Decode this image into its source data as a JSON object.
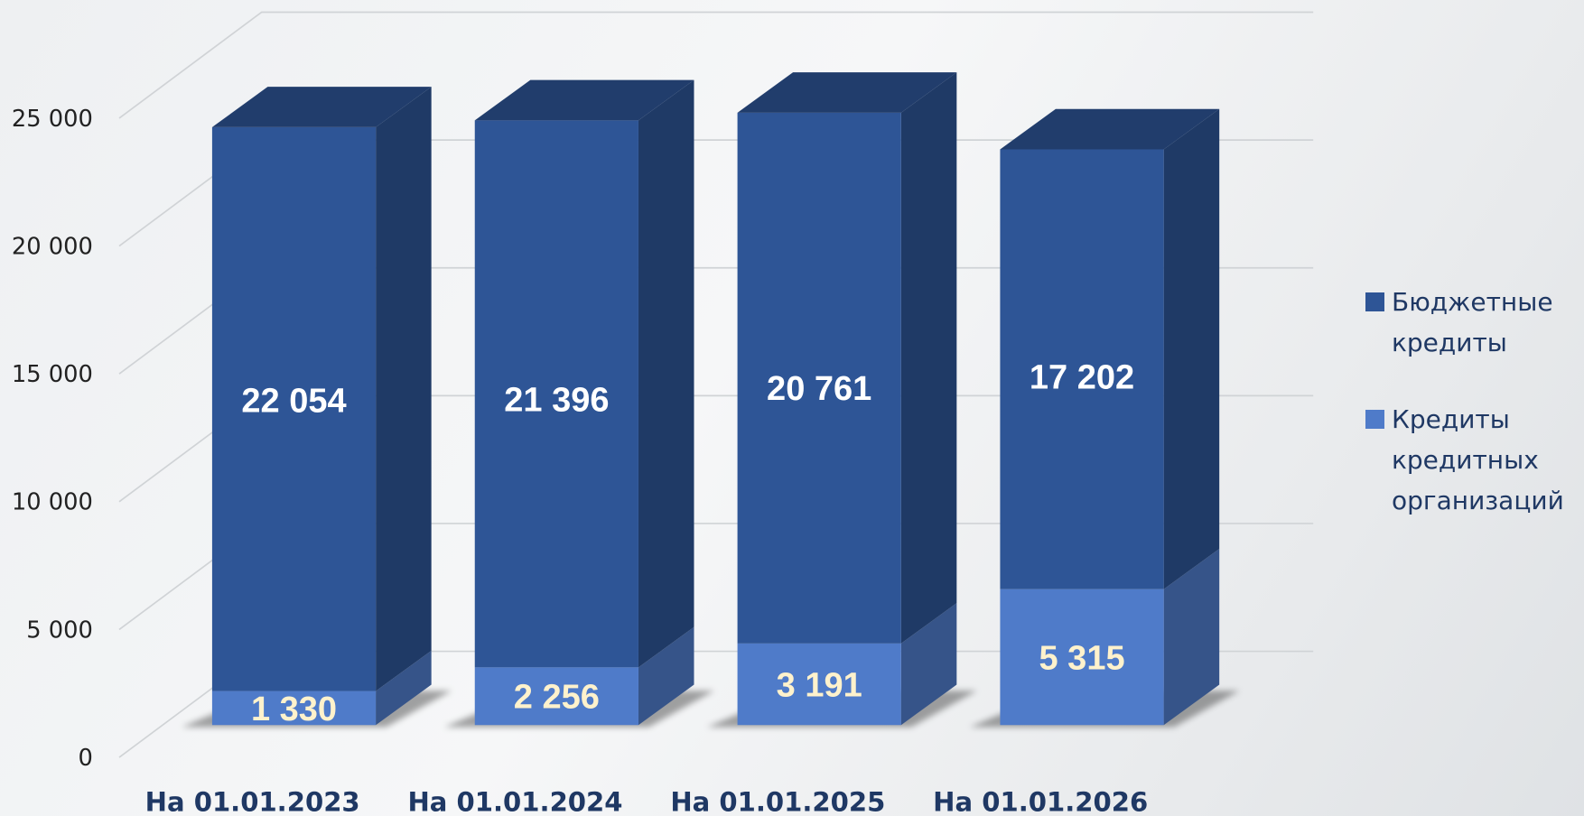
{
  "chart_data": {
    "type": "bar3d_stacked",
    "categories": [
      "На 01.01.2023",
      "На 01.01.2024",
      "На 01.01.2025",
      "На 01.01.2026"
    ],
    "series": [
      {
        "name": "Бюджетные кредиты",
        "color": "#2e5596",
        "values": [
          22054,
          21396,
          20761,
          17202
        ],
        "value_labels": [
          "22 054",
          "21 396",
          "20 761",
          "17 202"
        ]
      },
      {
        "name": "Кредиты кредитных организаций",
        "color": "#4f7bc9",
        "values": [
          1330,
          2256,
          3191,
          5315
        ],
        "value_labels": [
          "1 330",
          "2 256",
          "3 191",
          "5 315"
        ]
      }
    ],
    "ylim": [
      0,
      25000
    ],
    "yticks": [
      0,
      {
        "value": 5000,
        "label": "5 000"
      },
      {
        "value": 10000,
        "label": "10 000"
      },
      {
        "value": 15000,
        "label": "15 000"
      },
      {
        "value": 20000,
        "label": "20 000"
      },
      {
        "value": 25000,
        "label": "25 000"
      }
    ],
    "grid": true,
    "legend": "right"
  }
}
